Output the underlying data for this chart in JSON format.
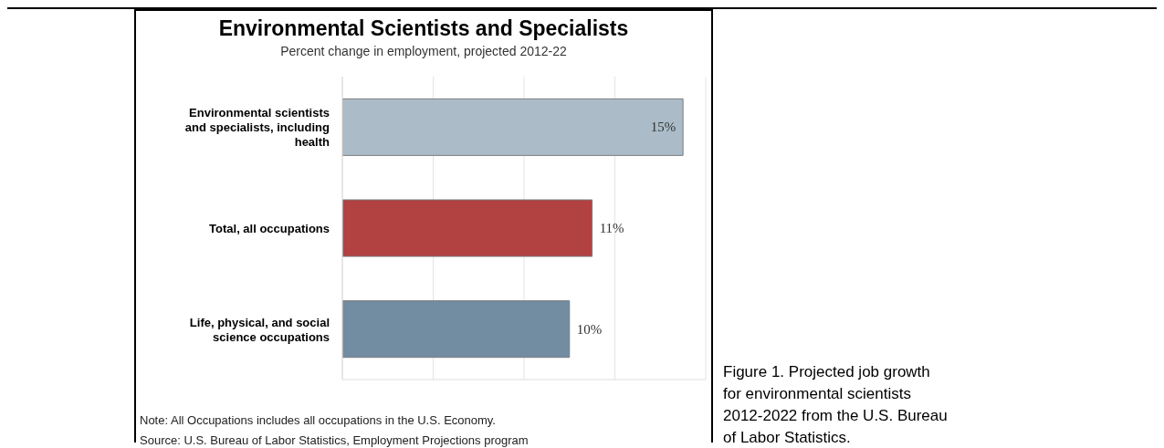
{
  "chart_data": {
    "type": "bar",
    "orientation": "horizontal",
    "title": "Environmental Scientists and Specialists",
    "subtitle": "Percent change in employment, projected 2012-22",
    "categories": [
      "Environmental scientists and specialists, including health",
      "Total, all occupations",
      "Life, physical, and social science occupations"
    ],
    "values": [
      15,
      11,
      10
    ],
    "colors": [
      "#abbcc8",
      "#b24142",
      "#728ca2"
    ],
    "value_labels": [
      "15%",
      "11%",
      "10%"
    ],
    "xlim": [
      0,
      16
    ],
    "xticks": [
      {
        "value": 0,
        "label": null
      },
      {
        "value": 4,
        "label": null
      },
      {
        "value": 8,
        "label": null
      },
      {
        "value": 12,
        "label": null
      },
      {
        "value": 16,
        "label": null
      }
    ],
    "tick_labels": "y",
    "grid": "x",
    "annotations": [
      "Note: All Occupations includes all occupations in the U.S. Economy.",
      "Source: U.S. Bureau of Labor Statistics, Employment Projections program",
      "Figure 1. Projected job growth for environmental scientists 2012-2022 from the U.S. Bureau of Labor Statistics."
    ]
  }
}
